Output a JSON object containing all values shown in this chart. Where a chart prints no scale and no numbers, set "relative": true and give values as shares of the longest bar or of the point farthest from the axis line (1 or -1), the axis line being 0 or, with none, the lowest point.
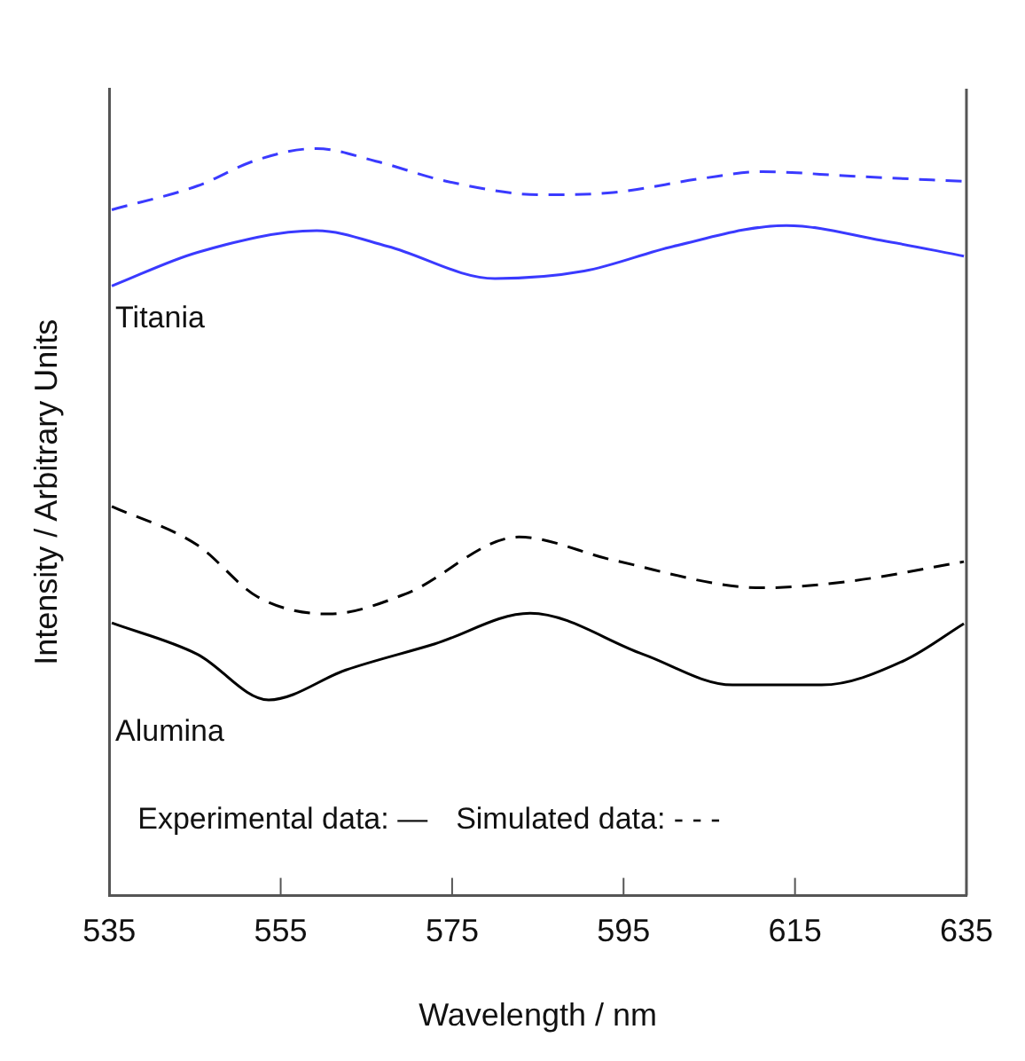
{
  "chart_data": {
    "type": "line",
    "relative": true,
    "xlabel": "Wavelength / nm",
    "ylabel": "Intensity / Arbitrary Units",
    "xlim": [
      535,
      635
    ],
    "xticks": [
      535,
      555,
      575,
      595,
      615,
      635
    ],
    "grid": false,
    "legend": false,
    "marker": "none",
    "series": [
      {
        "color": "#3a3aff",
        "line_style": "dashed",
        "x": [
          535.3,
          545.3,
          552.3,
          559.2,
          566.1,
          574.4,
          585.5,
          593.8,
          604.2,
          611.2,
          621.5,
          634.7
        ],
        "values": [
          0.918,
          0.95,
          0.985,
          1.0,
          0.983,
          0.956,
          0.938,
          0.941,
          0.96,
          0.969,
          0.963,
          0.956
        ]
      },
      {
        "name": "Titania",
        "color": "#3a3aff",
        "line_style": "solid",
        "x": [
          535.3,
          545.3,
          559.2,
          567.5,
          580,
          590.4,
          600.8,
          614,
          625.1,
          634.7
        ],
        "values": [
          0.816,
          0.861,
          0.89,
          0.869,
          0.826,
          0.836,
          0.869,
          0.897,
          0.877,
          0.856
        ]
      },
      {
        "color": "#000000",
        "line_style": "dashed",
        "x": [
          535.3,
          545.3,
          552.3,
          560.6,
          569.6,
          582.8,
          593.8,
          611.2,
          621.5,
          634.7
        ],
        "values": [
          0.521,
          0.469,
          0.4,
          0.377,
          0.404,
          0.48,
          0.449,
          0.412,
          0.421,
          0.447
        ]
      },
      {
        "name": "Alumina",
        "color": "#000000",
        "line_style": "solid",
        "x": [
          535.3,
          545.3,
          553.6,
          562.6,
          573,
          584.1,
          597.3,
          607.7,
          618.1,
          627.8,
          634.7
        ],
        "values": [
          0.365,
          0.323,
          0.262,
          0.302,
          0.337,
          0.378,
          0.323,
          0.282,
          0.282,
          0.315,
          0.364
        ]
      }
    ],
    "annotations": [
      "Experimental data: —",
      "Simulated data: - - -"
    ]
  }
}
